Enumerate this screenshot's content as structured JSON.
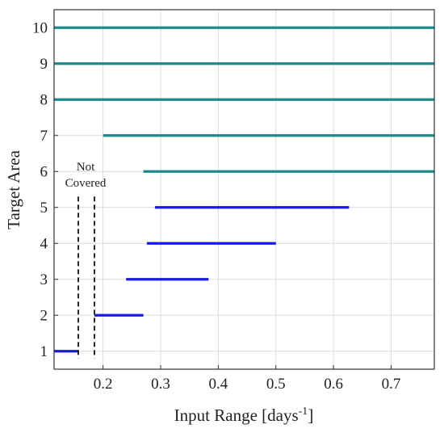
{
  "chart_data": {
    "type": "interval",
    "xlabel": "Input Range [days",
    "xlabel_sup": "-1",
    "xlabel_end": "]",
    "ylabel": "Target Area",
    "xlim": [
      0.115,
      0.775
    ],
    "ylim": [
      0.5,
      10.5
    ],
    "x_ticks": [
      0.2,
      0.3,
      0.4,
      0.5,
      0.6,
      0.7
    ],
    "x_tick_labels": [
      "0.2",
      "0.3",
      "0.4",
      "0.5",
      "0.6",
      "0.7"
    ],
    "y_ticks": [
      1,
      2,
      3,
      4,
      5,
      6,
      7,
      8,
      9,
      10
    ],
    "y_tick_labels": [
      "1",
      "2",
      "3",
      "4",
      "5",
      "6",
      "7",
      "8",
      "9",
      "10"
    ],
    "grid": true,
    "colors": {
      "blue": "#1a1ae6",
      "teal": "#1a8a8a"
    },
    "segments": [
      {
        "area": 1,
        "x_start": 0.115,
        "x_end": 0.157,
        "color": "blue"
      },
      {
        "area": 2,
        "x_start": 0.185,
        "x_end": 0.27,
        "color": "blue"
      },
      {
        "area": 3,
        "x_start": 0.24,
        "x_end": 0.383,
        "color": "blue"
      },
      {
        "area": 4,
        "x_start": 0.276,
        "x_end": 0.5,
        "color": "blue"
      },
      {
        "area": 5,
        "x_start": 0.29,
        "x_end": 0.627,
        "color": "blue"
      },
      {
        "area": 6,
        "x_start": 0.27,
        "x_end": 0.775,
        "color": "teal"
      },
      {
        "area": 7,
        "x_start": 0.2,
        "x_end": 0.775,
        "color": "teal"
      },
      {
        "area": 8,
        "x_start": 0.115,
        "x_end": 0.775,
        "color": "teal"
      },
      {
        "area": 9,
        "x_start": 0.115,
        "x_end": 0.775,
        "color": "teal"
      },
      {
        "area": 10,
        "x_start": 0.115,
        "x_end": 0.775,
        "color": "teal"
      }
    ],
    "not_covered": {
      "label_line1": "Not",
      "label_line2": "Covered",
      "x_lines": [
        0.157,
        0.185
      ],
      "y_range": [
        0.8,
        5.3
      ]
    }
  }
}
